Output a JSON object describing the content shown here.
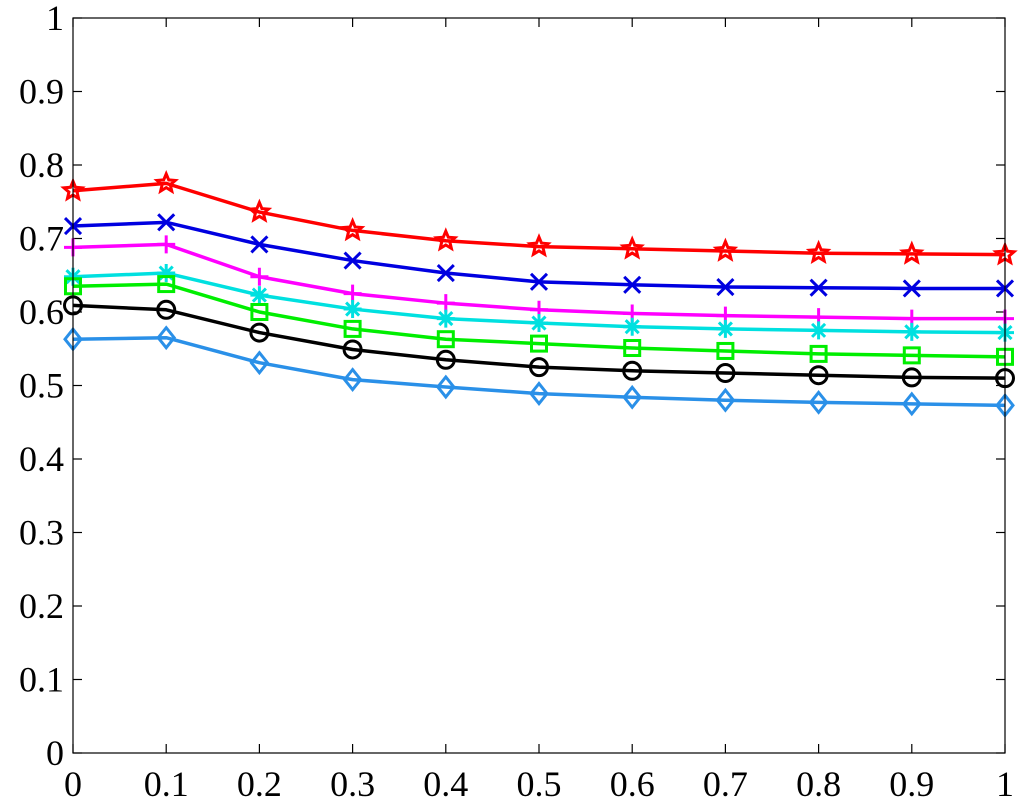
{
  "chart_data": {
    "type": "line",
    "title": "",
    "xlabel": "",
    "ylabel": "",
    "xlim": [
      0,
      1
    ],
    "ylim": [
      0,
      1
    ],
    "grid": false,
    "x": [
      0,
      0.1,
      0.2,
      0.3,
      0.4,
      0.5,
      0.6,
      0.7,
      0.8,
      0.9,
      1
    ],
    "x_tick_labels": [
      "0",
      "0.1",
      "0.2",
      "0.3",
      "0.4",
      "0.5",
      "0.6",
      "0.7",
      "0.8",
      "0.9",
      "1"
    ],
    "y_ticks": [
      0,
      0.1,
      0.2,
      0.3,
      0.4,
      0.5,
      0.6,
      0.7,
      0.8,
      0.9,
      1
    ],
    "y_tick_labels": [
      "0",
      "0.1",
      "0.2",
      "0.3",
      "0.4",
      "0.5",
      "0.6",
      "0.7",
      "0.8",
      "0.9",
      "1"
    ],
    "series": [
      {
        "color": "#ff0000",
        "marker": "star",
        "values": [
          0.765,
          0.775,
          0.736,
          0.711,
          0.697,
          0.689,
          0.686,
          0.683,
          0.68,
          0.679,
          0.678
        ]
      },
      {
        "color": "#0000e0",
        "marker": "x",
        "values": [
          0.717,
          0.722,
          0.692,
          0.67,
          0.653,
          0.641,
          0.637,
          0.634,
          0.633,
          0.632,
          0.632
        ]
      },
      {
        "color": "#ff00ff",
        "marker": "plus",
        "values": [
          0.688,
          0.692,
          0.648,
          0.625,
          0.612,
          0.603,
          0.598,
          0.595,
          0.593,
          0.591,
          0.591
        ]
      },
      {
        "color": "#00e0e0",
        "marker": "asterisk",
        "values": [
          0.648,
          0.653,
          0.623,
          0.604,
          0.591,
          0.585,
          0.58,
          0.577,
          0.575,
          0.573,
          0.572
        ]
      },
      {
        "color": "#00ee00",
        "marker": "square",
        "values": [
          0.635,
          0.638,
          0.6,
          0.577,
          0.563,
          0.557,
          0.551,
          0.547,
          0.543,
          0.541,
          0.539
        ]
      },
      {
        "color": "#000000",
        "marker": "circle",
        "values": [
          0.609,
          0.603,
          0.572,
          0.549,
          0.535,
          0.525,
          0.52,
          0.517,
          0.514,
          0.511,
          0.51
        ]
      },
      {
        "color": "#2a90e8",
        "marker": "diamond",
        "values": [
          0.563,
          0.565,
          0.531,
          0.508,
          0.498,
          0.489,
          0.484,
          0.48,
          0.477,
          0.475,
          0.473
        ]
      }
    ]
  }
}
